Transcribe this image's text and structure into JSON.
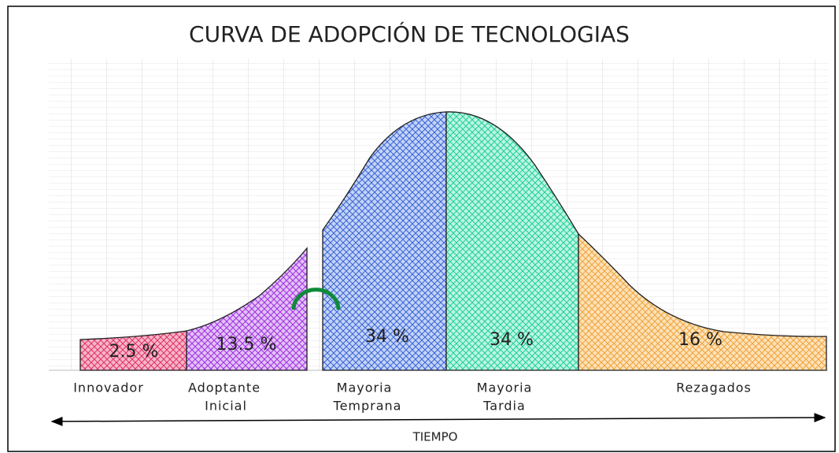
{
  "title": "CURVA DE ADOPCIÓN DE TECNOLOGIAS",
  "segments": [
    {
      "percent": "2.5 %",
      "label": [
        "Innovador"
      ]
    },
    {
      "percent": "13.5 %",
      "label": [
        "Adoptante",
        "Inicial"
      ]
    },
    {
      "percent": "34 %",
      "label": [
        "Mayoria",
        "Temprana"
      ]
    },
    {
      "percent": "34 %",
      "label": [
        "Mayoria",
        "Tardia"
      ]
    },
    {
      "percent": "16 %",
      "label": [
        "Rezagados"
      ]
    }
  ],
  "axis_label": "TIEMPO"
}
